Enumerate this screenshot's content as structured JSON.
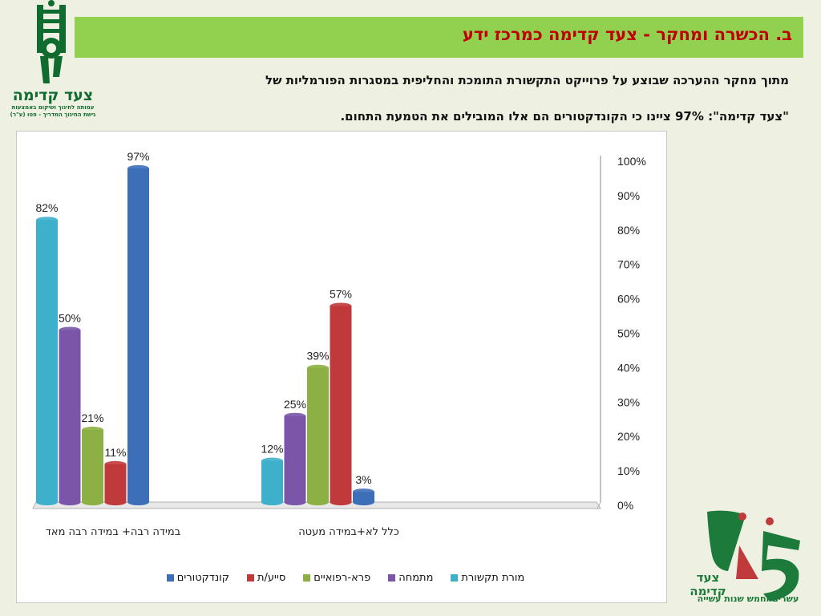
{
  "logo_left": {
    "name": "צעד קדימה",
    "sub1": "עמותה לחינוך ושיקום באמצעות",
    "sub2": "גישת החינוך המדריך - פטו (ע\"ר)"
  },
  "banner": {
    "title": "ב. הכשרה ומחקר - צעד קדימה כמרכז ידע"
  },
  "description": {
    "line1": "מתוך מחקר ההערכה שבוצע על פרוייקט התקשורת התומכת והחליפית במסגרות הפורמליות של",
    "line2": "\"צעד קדימה\": 97% ציינו כי הקונדקטורים הם אלו המובילים את הטמעת התחום."
  },
  "logo_right": {
    "name": "צעד קדימה",
    "tagline": "עשרים וחמש שנות עשייה"
  },
  "colors": {
    "banner": "#92d050",
    "title": "#c00000",
    "logo_green": "#0f6b2e"
  },
  "chart_data": {
    "type": "bar",
    "categories": [
      "במידה רבה+ במידה רבה מאד",
      "כלל לא+במידה מעטה"
    ],
    "series": [
      {
        "name": "מורת תקשורת",
        "values": [
          82,
          12
        ],
        "color": "#3fb0cc"
      },
      {
        "name": "מתמחה",
        "values": [
          50,
          25
        ],
        "color": "#7a55a8"
      },
      {
        "name": "פרא-רפואיים",
        "values": [
          21,
          39
        ],
        "color": "#8cb043"
      },
      {
        "name": "סייע/ת",
        "values": [
          11,
          57
        ],
        "color": "#c0393b"
      },
      {
        "name": "קונדקטורים",
        "values": [
          97,
          3
        ],
        "color": "#3d6fb8"
      }
    ],
    "data_labels": [
      [
        "82%",
        "50%",
        "21%",
        "11%",
        "97%"
      ],
      [
        "12%",
        "25%",
        "39%",
        "57%",
        "3%"
      ]
    ],
    "yticks": [
      "0%",
      "10%",
      "20%",
      "30%",
      "40%",
      "50%",
      "60%",
      "70%",
      "80%",
      "90%",
      "100%"
    ],
    "ylim": [
      0,
      100
    ],
    "legend": [
      "מורת תקשורת",
      "מתמחה",
      "פרא-רפואיים",
      "סייע/ת",
      "קונדקטורים"
    ],
    "legend_position": "bottom",
    "y_axis_side": "right",
    "grid": false
  }
}
